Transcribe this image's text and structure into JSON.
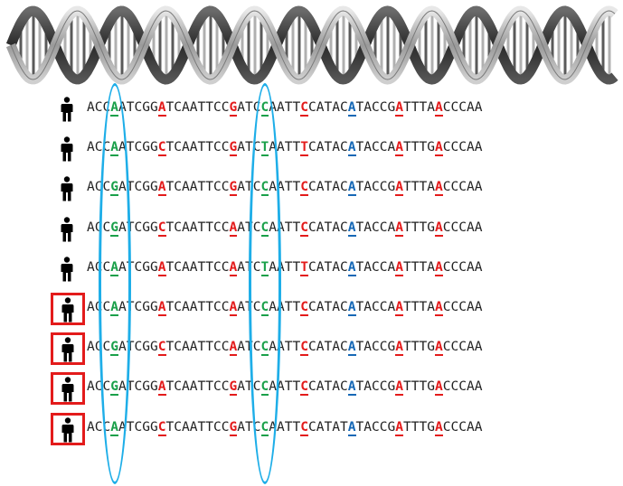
{
  "colors": {
    "red": "#e31b1b",
    "green": "#1aa04a",
    "blue": "#1668b6",
    "ellipse": "#1eaee8",
    "box": "#e31b1b"
  },
  "icons": {
    "person": "person-icon",
    "helix": "dna-helix-icon"
  },
  "sequences": [
    {
      "seq": "ACCAATCGGATCAATTCCGATCCAATTCCATACATACCGATTTAACCCAA",
      "boxed": false
    },
    {
      "seq": "ACCAATCGGCTCAATTCCGATCTAATTTCATACATACCAATTTGACCCAA",
      "boxed": false
    },
    {
      "seq": "ACCGATCGGATCAATTCCGATCCAATTCCATACATACCGATTTAACCCAA",
      "boxed": false
    },
    {
      "seq": "ACCGATCGGCTCAATTCCAATCCAATTCCATACATACCAATTTGACCCAA",
      "boxed": false
    },
    {
      "seq": "ACCAATCGGATCAATTCCAATCTAATTTCATACATACCAATTTAACCCAA",
      "boxed": false
    },
    {
      "seq": "ACCAATCGGATCAATTCCAATCCAATTCCATACATACCAATTTAACCCAA",
      "boxed": true
    },
    {
      "seq": "ACCGATCGGCTCAATTCCAATCCAATTCCATACATACCGATTTGACCCAA",
      "boxed": true
    },
    {
      "seq": "ACCGATCGGATCAATTCCGATCCAATTCCATACATACCGATTTGACCCAA",
      "boxed": true
    },
    {
      "seq": "ACCAATCGGCTCAATTCCGATCCAATTCCATATATACCGATTTGACCCAA",
      "boxed": true
    }
  ],
  "variant_sites": [
    {
      "index": 3,
      "color": "green",
      "circled": true
    },
    {
      "index": 9,
      "color": "red",
      "circled": false
    },
    {
      "index": 18,
      "color": "red",
      "circled": false
    },
    {
      "index": 22,
      "color": "green",
      "circled": true
    },
    {
      "index": 27,
      "color": "red",
      "circled": false
    },
    {
      "index": 33,
      "color": "blue",
      "circled": false
    },
    {
      "index": 39,
      "color": "red",
      "circled": false
    },
    {
      "index": 44,
      "color": "red",
      "circled": false
    }
  ]
}
